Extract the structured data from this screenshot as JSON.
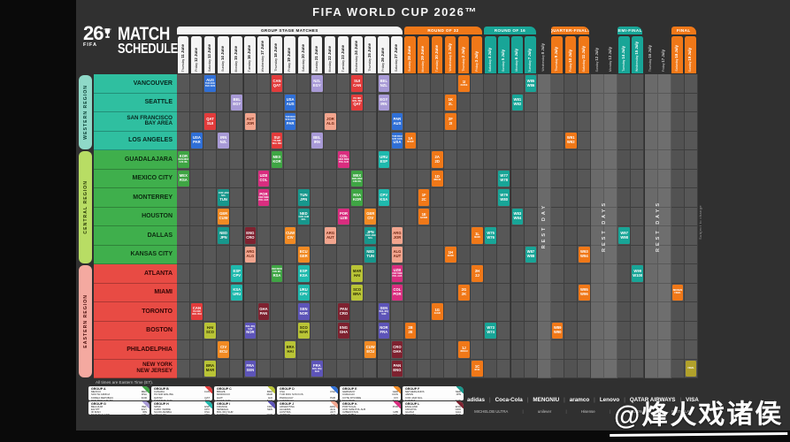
{
  "title": "FIFA WORLD CUP 2026™",
  "logo": {
    "number": "26",
    "fifa": "FIFA",
    "line1": "MATCH",
    "line2": "SCHEDULE"
  },
  "notes": {
    "times": "All times are Eastern Time (ET).",
    "subject": "Subject to change"
  },
  "watermark": "@烽火戏诸侯",
  "regions": [
    {
      "id": "western",
      "label": "WESTERN REGION",
      "pill": "#8fd9c8",
      "pillText": "#083d33",
      "cityBg": "#2fbfa0",
      "cityText": "#07261e",
      "rows": [
        0,
        3
      ]
    },
    {
      "id": "central",
      "label": "CENTRAL REGION",
      "pill": "#b8dd64",
      "pillText": "#2a3a07",
      "cityBg": "#3faf4c",
      "cityText": "#0c2b10",
      "rows": [
        4,
        9
      ]
    },
    {
      "id": "eastern",
      "label": "EASTERN REGION",
      "pill": "#f4a9a0",
      "pillText": "#4a0f0c",
      "cityBg": "#e84b44",
      "cityText": "#330606",
      "rows": [
        10,
        15
      ]
    }
  ],
  "cities": [
    "VANCOUVER",
    "SEATTLE",
    "SAN FRANCISCO\nBAY AREA",
    "LOS ANGELES",
    "GUADALAJARA",
    "MEXICO CITY",
    "MONTERREY",
    "HOUSTON",
    "DALLAS",
    "KANSAS CITY",
    "ATLANTA",
    "MIAMI",
    "TORONTO",
    "BOSTON",
    "PHILADELPHIA",
    "NEW YORK\nNEW JERSEY"
  ],
  "sections": [
    {
      "label": "GROUP STAGE MATCHES",
      "start": 1,
      "end": 17,
      "bg": "#f4f4f4",
      "fg": "#111111"
    },
    {
      "label": "ROUND OF 32",
      "start": 18,
      "end": 23,
      "bg": "#f07818",
      "fg": "#ffffff"
    },
    {
      "label": "ROUND OF 16",
      "start": 24,
      "end": 27,
      "bg": "#18a597",
      "fg": "#ffffff"
    },
    {
      "label": "QUARTER-FINALS",
      "start": 29,
      "end": 31,
      "bg": "#f07818",
      "fg": "#ffffff"
    },
    {
      "label": "SEMI-FINALS",
      "start": 34,
      "end": 35,
      "bg": "#18a597",
      "fg": "#ffffff"
    },
    {
      "label": "FINAL",
      "start": 38,
      "end": 39,
      "bg": "#f07818",
      "fg": "#ffffff"
    }
  ],
  "rest_zones": [
    {
      "label": "REST DAY",
      "start": 28,
      "end": 28
    },
    {
      "label": "REST DAYS",
      "start": 32,
      "end": 33
    },
    {
      "label": "REST DAYS",
      "start": 36,
      "end": 37
    }
  ],
  "columns": [
    {
      "label": "Thursday|11 June",
      "cat": "group"
    },
    {
      "label": "Friday|12 June",
      "cat": "group"
    },
    {
      "label": "Saturday|13 June",
      "cat": "group"
    },
    {
      "label": "Sunday|14 June",
      "cat": "group"
    },
    {
      "label": "Monday|15 June",
      "cat": "group"
    },
    {
      "label": "Tuesday|16 June",
      "cat": "group"
    },
    {
      "label": "Wednesday|17 June",
      "cat": "group"
    },
    {
      "label": "Thursday|18 June",
      "cat": "group"
    },
    {
      "label": "Friday|19 June",
      "cat": "group"
    },
    {
      "label": "Saturday|20 June",
      "cat": "group"
    },
    {
      "label": "Sunday|21 June",
      "cat": "group"
    },
    {
      "label": "Monday|22 June",
      "cat": "group"
    },
    {
      "label": "Tuesday|23 June",
      "cat": "group"
    },
    {
      "label": "Wednesday|24 June",
      "cat": "group"
    },
    {
      "label": "Thursday|25 June",
      "cat": "group"
    },
    {
      "label": "Friday|26 June",
      "cat": "group"
    },
    {
      "label": "Saturday|27 June",
      "cat": "group"
    },
    {
      "label": "Sunday|28 June",
      "cat": "r32"
    },
    {
      "label": "Monday|29 June",
      "cat": "r32"
    },
    {
      "label": "Tuesday|30 June",
      "cat": "r32"
    },
    {
      "label": "Wednesday|1 July",
      "cat": "r32"
    },
    {
      "label": "Thursday|2 July",
      "cat": "r32"
    },
    {
      "label": "Friday|3 July",
      "cat": "r32"
    },
    {
      "label": "Saturday|4 July",
      "cat": "r16"
    },
    {
      "label": "Sunday|5 July",
      "cat": "r16"
    },
    {
      "label": "Monday|6 July",
      "cat": "r16"
    },
    {
      "label": "Tuesday|7 July",
      "cat": "r16"
    },
    {
      "label": "Wednesday|8 July",
      "cat": "rest"
    },
    {
      "label": "Thursday|9 July",
      "cat": "qf"
    },
    {
      "label": "Friday|10 July",
      "cat": "qf"
    },
    {
      "label": "Saturday|11 July",
      "cat": "qf"
    },
    {
      "label": "Sunday|12 July",
      "cat": "rest"
    },
    {
      "label": "Monday|13 July",
      "cat": "rest"
    },
    {
      "label": "Tuesday|14 July",
      "cat": "sf"
    },
    {
      "label": "Wednesday|15 July",
      "cat": "sf"
    },
    {
      "label": "Thursday|16 July",
      "cat": "rest"
    },
    {
      "label": "Friday|17 July",
      "cat": "rest"
    },
    {
      "label": "Saturday|18 July",
      "cat": "final"
    },
    {
      "label": "Sunday|19 July",
      "cat": "final"
    }
  ],
  "group_colors": {
    "A": {
      "bg": "#3fa544",
      "fg": "#ffffff"
    },
    "B": {
      "bg": "#e23b3b",
      "fg": "#ffffff"
    },
    "C": {
      "bg": "#b9c436",
      "fg": "#2b2b06"
    },
    "D": {
      "bg": "#2f6fd6",
      "fg": "#ffffff"
    },
    "E": {
      "bg": "#f18a23",
      "fg": "#ffffff"
    },
    "F": {
      "bg": "#17978c",
      "fg": "#ffffff"
    },
    "G": {
      "bg": "#a89ad6",
      "fg": "#ffffff"
    },
    "H": {
      "bg": "#1fb9ad",
      "fg": "#ffffff"
    },
    "I": {
      "bg": "#5d54b8",
      "fg": "#ffffff"
    },
    "J": {
      "bg": "#f2a58e",
      "fg": "#6e2410"
    },
    "K": {
      "bg": "#d92d7f",
      "fg": "#ffffff"
    },
    "L": {
      "bg": "#7e2230",
      "fg": "#ffffff"
    },
    "R32": {
      "bg": "#f07818",
      "fg": "#ffffff"
    },
    "R16": {
      "bg": "#18a597",
      "fg": "#ffffff"
    },
    "QF": {
      "bg": "#f07818",
      "fg": "#ffffff"
    },
    "SF": {
      "bg": "#18a597",
      "fg": "#ffffff"
    },
    "BZ": {
      "bg": "#f07818",
      "fg": "#ffffff"
    },
    "FN": {
      "bg": "#b1a12b",
      "fg": "#ffffff"
    }
  },
  "cells": [
    [
      0,
      3,
      "D",
      "AUS",
      "TUR ROU SVK KOS"
    ],
    [
      0,
      8,
      "B",
      "CAN",
      "QAT"
    ],
    [
      0,
      11,
      "G",
      "NZL",
      "EGY"
    ],
    [
      0,
      14,
      "B",
      "SUI",
      "CAN"
    ],
    [
      0,
      16,
      "G",
      "BEL",
      "NZL"
    ],
    [
      1,
      5,
      "G",
      "BEL",
      "EGY"
    ],
    [
      1,
      9,
      "D",
      "USA",
      "AUS"
    ],
    [
      1,
      14,
      "B",
      "ITA NIR WAL BIH",
      "QAT"
    ],
    [
      1,
      16,
      "G",
      "EGY",
      "IRN"
    ],
    [
      2,
      3,
      "B",
      "QAT",
      "SUI"
    ],
    [
      2,
      6,
      "J",
      "AUT",
      "JOR"
    ],
    [
      2,
      9,
      "D",
      "TUR ROU SVK KOS",
      "PAR"
    ],
    [
      2,
      12,
      "J",
      "JOR",
      "ALG"
    ],
    [
      2,
      17,
      "D",
      "PAR",
      "AUS"
    ],
    [
      3,
      2,
      "D",
      "USA",
      "PAR"
    ],
    [
      3,
      4,
      "G",
      "IRN",
      "NZL"
    ],
    [
      3,
      8,
      "B",
      "SUI",
      "ITA NIR WAL BIH"
    ],
    [
      3,
      11,
      "G",
      "BEL",
      "IRN"
    ],
    [
      3,
      17,
      "D",
      "TUR ROU SVK KOS",
      "USA"
    ],
    [
      4,
      1,
      "A",
      "KOR",
      "DEN MKD CZE IRL"
    ],
    [
      4,
      8,
      "A",
      "MEX",
      "KOR"
    ],
    [
      4,
      13,
      "K",
      "COL",
      "UKR SWE POL ALB"
    ],
    [
      4,
      16,
      "H",
      "URU",
      "ESP"
    ],
    [
      5,
      1,
      "A",
      "MEX",
      "RSA"
    ],
    [
      5,
      7,
      "K",
      "UZB",
      "COL"
    ],
    [
      5,
      14,
      "A",
      "MEX",
      "DEN MKD CZE IRL"
    ],
    [
      6,
      4,
      "F",
      "COD JAM NCL",
      "TUN"
    ],
    [
      6,
      7,
      "K",
      "POR",
      "UKR SWE POL ALB"
    ],
    [
      6,
      10,
      "F",
      "TUN",
      "JPN"
    ],
    [
      6,
      14,
      "A",
      "RSA",
      "KOR"
    ],
    [
      6,
      16,
      "H",
      "CPV",
      "KSA"
    ],
    [
      7,
      4,
      "E",
      "GER",
      "CUW"
    ],
    [
      7,
      10,
      "F",
      "NED",
      "COD JAM NCL"
    ],
    [
      7,
      13,
      "K",
      "POR",
      "UZB"
    ],
    [
      7,
      15,
      "E",
      "GER",
      "CIV"
    ],
    [
      8,
      4,
      "F",
      "NED",
      "JPN"
    ],
    [
      8,
      6,
      "L",
      "ENG",
      "CRO"
    ],
    [
      8,
      9,
      "E",
      "CUW",
      "CIV"
    ],
    [
      8,
      12,
      "J",
      "ARG",
      "AUT"
    ],
    [
      8,
      15,
      "F",
      "JPN",
      "COD JAM NCL"
    ],
    [
      8,
      17,
      "J",
      "ARG",
      "JOR"
    ],
    [
      9,
      6,
      "J",
      "ARG",
      "ALG"
    ],
    [
      9,
      10,
      "E",
      "ECU",
      "GER"
    ],
    [
      9,
      15,
      "F",
      "NED",
      "TUN"
    ],
    [
      9,
      17,
      "J",
      "ALG",
      "AUT"
    ],
    [
      10,
      5,
      "H",
      "ESP",
      "CPV"
    ],
    [
      10,
      8,
      "A",
      "DEN MKD CZE IRL",
      "RSA"
    ],
    [
      10,
      10,
      "H",
      "ESP",
      "KSA"
    ],
    [
      10,
      14,
      "C",
      "MAR",
      "HAI"
    ],
    [
      10,
      17,
      "K",
      "UZB",
      "UKR SWE POL ALB"
    ],
    [
      11,
      5,
      "H",
      "KSA",
      "URU"
    ],
    [
      11,
      10,
      "H",
      "URU",
      "CPV"
    ],
    [
      11,
      14,
      "C",
      "SCO",
      "BRA"
    ],
    [
      11,
      17,
      "K",
      "COL",
      "POR"
    ],
    [
      12,
      2,
      "B",
      "CAN",
      "ITA NIR WAL BIH"
    ],
    [
      12,
      7,
      "L",
      "GHA",
      "PAN"
    ],
    [
      12,
      10,
      "I",
      "SEN",
      "NOR"
    ],
    [
      12,
      13,
      "L",
      "PAN",
      "CRO"
    ],
    [
      12,
      16,
      "I",
      "SEN",
      "BOL IRQ SUR"
    ],
    [
      13,
      3,
      "C",
      "HAI",
      "SCO"
    ],
    [
      13,
      6,
      "I",
      "BOL IRQ SUR",
      "NOR"
    ],
    [
      13,
      10,
      "C",
      "SCO",
      "MAR"
    ],
    [
      13,
      13,
      "L",
      "ENG",
      "GHA"
    ],
    [
      13,
      16,
      "I",
      "NOR",
      "FRA"
    ],
    [
      14,
      4,
      "E",
      "CIV",
      "ECU"
    ],
    [
      14,
      9,
      "C",
      "BRA",
      "HAI"
    ],
    [
      14,
      15,
      "E",
      "CUW",
      "ECU"
    ],
    [
      14,
      17,
      "L",
      "CRO",
      "GHA"
    ],
    [
      15,
      3,
      "C",
      "BRA",
      "MAR"
    ],
    [
      15,
      6,
      "I",
      "FRA",
      "SEN"
    ],
    [
      15,
      11,
      "I",
      "FRA",
      "BOL IRQ SUR"
    ],
    [
      15,
      17,
      "L",
      "PAN",
      "ENG"
    ],
    [
      3,
      18,
      "R32",
      "1A",
      "3C/E/F"
    ],
    [
      13,
      18,
      "R32",
      "2B",
      "2E"
    ],
    [
      6,
      19,
      "R32",
      "1F",
      "2C"
    ],
    [
      7,
      19,
      "R32",
      "1E",
      "3A/B/D"
    ],
    [
      4,
      20,
      "R32",
      "2A",
      "2D"
    ],
    [
      5,
      20,
      "R32",
      "1D",
      "3B/C/E"
    ],
    [
      12,
      20,
      "R32",
      "1G",
      "3A/H/I"
    ],
    [
      1,
      21,
      "R32",
      "1K",
      "2L"
    ],
    [
      2,
      21,
      "R32",
      "2F",
      "2I"
    ],
    [
      9,
      21,
      "R32",
      "1H",
      "3G/I/K"
    ],
    [
      0,
      22,
      "R32",
      "1I",
      "3C/D/E"
    ],
    [
      11,
      22,
      "R32",
      "2G",
      "2K"
    ],
    [
      14,
      22,
      "R32",
      "1J",
      "3D/G/H"
    ],
    [
      8,
      23,
      "R32",
      "1L",
      "3E/I/K"
    ],
    [
      10,
      23,
      "R32",
      "2H",
      "2J"
    ],
    [
      15,
      23,
      "R32",
      "1C",
      "3F/I/L"
    ],
    [
      13,
      24,
      "R16",
      "W73",
      "W74"
    ],
    [
      8,
      24,
      "R16",
      "W75",
      "W76"
    ],
    [
      5,
      25,
      "R16",
      "W77",
      "W78"
    ],
    [
      6,
      25,
      "R16",
      "W79",
      "W80"
    ],
    [
      1,
      26,
      "R16",
      "W81",
      "W82"
    ],
    [
      7,
      26,
      "R16",
      "W83",
      "W84"
    ],
    [
      0,
      27,
      "R16",
      "W85",
      "W86"
    ],
    [
      9,
      27,
      "R16",
      "W87",
      "W88"
    ],
    [
      13,
      29,
      "QF",
      "W89",
      "W90"
    ],
    [
      3,
      30,
      "QF",
      "W91",
      "W92"
    ],
    [
      9,
      31,
      "QF",
      "W93",
      "W94"
    ],
    [
      11,
      31,
      "QF",
      "W95",
      "W96"
    ],
    [
      8,
      34,
      "SF",
      "W97",
      "W98"
    ],
    [
      10,
      35,
      "SF",
      "W99",
      "W100"
    ],
    [
      11,
      38,
      "BZ",
      "BRONZE",
      "FINAL"
    ],
    [
      15,
      39,
      "FN",
      "FINAL",
      ""
    ]
  ],
  "legend": [
    {
      "name": "GROUP A",
      "color": "#3fa544",
      "teams": [
        [
          "MEXICO",
          "MEX"
        ],
        [
          "SOUTH AFRICA",
          "RSA"
        ],
        [
          "KOREA REPUBLIC",
          "KOR"
        ],
        [
          "DEN MKD CZE IRL",
          ""
        ]
      ]
    },
    {
      "name": "GROUP B",
      "color": "#e23b3b",
      "teams": [
        [
          "CANADA",
          "CAN"
        ],
        [
          "ITA NIR WAL BIH",
          ""
        ],
        [
          "QATAR",
          "QAT"
        ],
        [
          "SWITZERLAND",
          "SUI"
        ]
      ]
    },
    {
      "name": "GROUP C",
      "color": "#b9c436",
      "teams": [
        [
          "BRAZIL",
          "BRA"
        ],
        [
          "MOROCCO",
          "MAR"
        ],
        [
          "HAITI",
          "HAI"
        ],
        [
          "SCOTLAND",
          "SCO"
        ]
      ]
    },
    {
      "name": "GROUP D",
      "color": "#2f6fd6",
      "teams": [
        [
          "USA",
          "USA"
        ],
        [
          "TUR ROU SVK KOS",
          ""
        ],
        [
          "PARAGUAY",
          "PAR"
        ],
        [
          "AUSTRALIA",
          "AUS"
        ]
      ]
    },
    {
      "name": "GROUP E",
      "color": "#f18a23",
      "teams": [
        [
          "GERMANY",
          "GER"
        ],
        [
          "CURACAO",
          "CUW"
        ],
        [
          "COTE D'IVOIRE",
          "CIV"
        ],
        [
          "ECUADOR",
          "ECU"
        ]
      ]
    },
    {
      "name": "GROUP F",
      "color": "#17978c",
      "teams": [
        [
          "NETHERLANDS",
          "NED"
        ],
        [
          "JAPAN",
          "JPN"
        ],
        [
          "COD JAM NCL",
          ""
        ],
        [
          "TUNISIA",
          "TUN"
        ]
      ]
    },
    {
      "name": "GROUP G",
      "color": "#a89ad6",
      "teams": [
        [
          "BELGIUM",
          "BEL"
        ],
        [
          "EGYPT",
          "EGY"
        ],
        [
          "IR IRAN",
          "IRN"
        ],
        [
          "NEW ZEALAND",
          "NZL"
        ]
      ]
    },
    {
      "name": "GROUP H",
      "color": "#1fb9ad",
      "teams": [
        [
          "SPAIN",
          "ESP"
        ],
        [
          "CABO VERDE",
          "CPV"
        ],
        [
          "SAUDI ARABIA",
          "KSA"
        ],
        [
          "URUGUAY",
          "URU"
        ]
      ]
    },
    {
      "name": "GROUP I",
      "color": "#5d54b8",
      "teams": [
        [
          "FRANCE",
          "FRA"
        ],
        [
          "SENEGAL",
          "SEN"
        ],
        [
          "BOL IRQ SUR",
          ""
        ],
        [
          "NORWAY",
          "NOR"
        ]
      ]
    },
    {
      "name": "GROUP J",
      "color": "#f2a58e",
      "teams": [
        [
          "ARGENTINA",
          "ARG"
        ],
        [
          "ALGERIA",
          "ALG"
        ],
        [
          "AUSTRIA",
          "AUT"
        ],
        [
          "JORDAN",
          "JOR"
        ]
      ]
    },
    {
      "name": "GROUP K",
      "color": "#d92d7f",
      "teams": [
        [
          "PORTUGAL",
          "POR"
        ],
        [
          "UKR SWE POL ALB",
          ""
        ],
        [
          "UZBEKISTAN",
          "UZB"
        ],
        [
          "COLOMBIA",
          "COL"
        ]
      ]
    },
    {
      "name": "GROUP L",
      "color": "#7e2230",
      "teams": [
        [
          "ENGLAND",
          "ENG"
        ],
        [
          "CROATIA",
          "CRO"
        ],
        [
          "GHANA",
          "GHA"
        ],
        [
          "PANAMA",
          "PAN"
        ]
      ]
    }
  ],
  "sponsors": {
    "row1": [
      "adidas",
      "Coca-Cola",
      "MENGNIU",
      "aramco",
      "Lenovo",
      "QATAR AIRWAYS",
      "VISA"
    ],
    "row2": [
      "MICHELOB ULTRA",
      "unilever",
      "Hisense",
      "VERIZON",
      "FRITO-LAY"
    ]
  }
}
